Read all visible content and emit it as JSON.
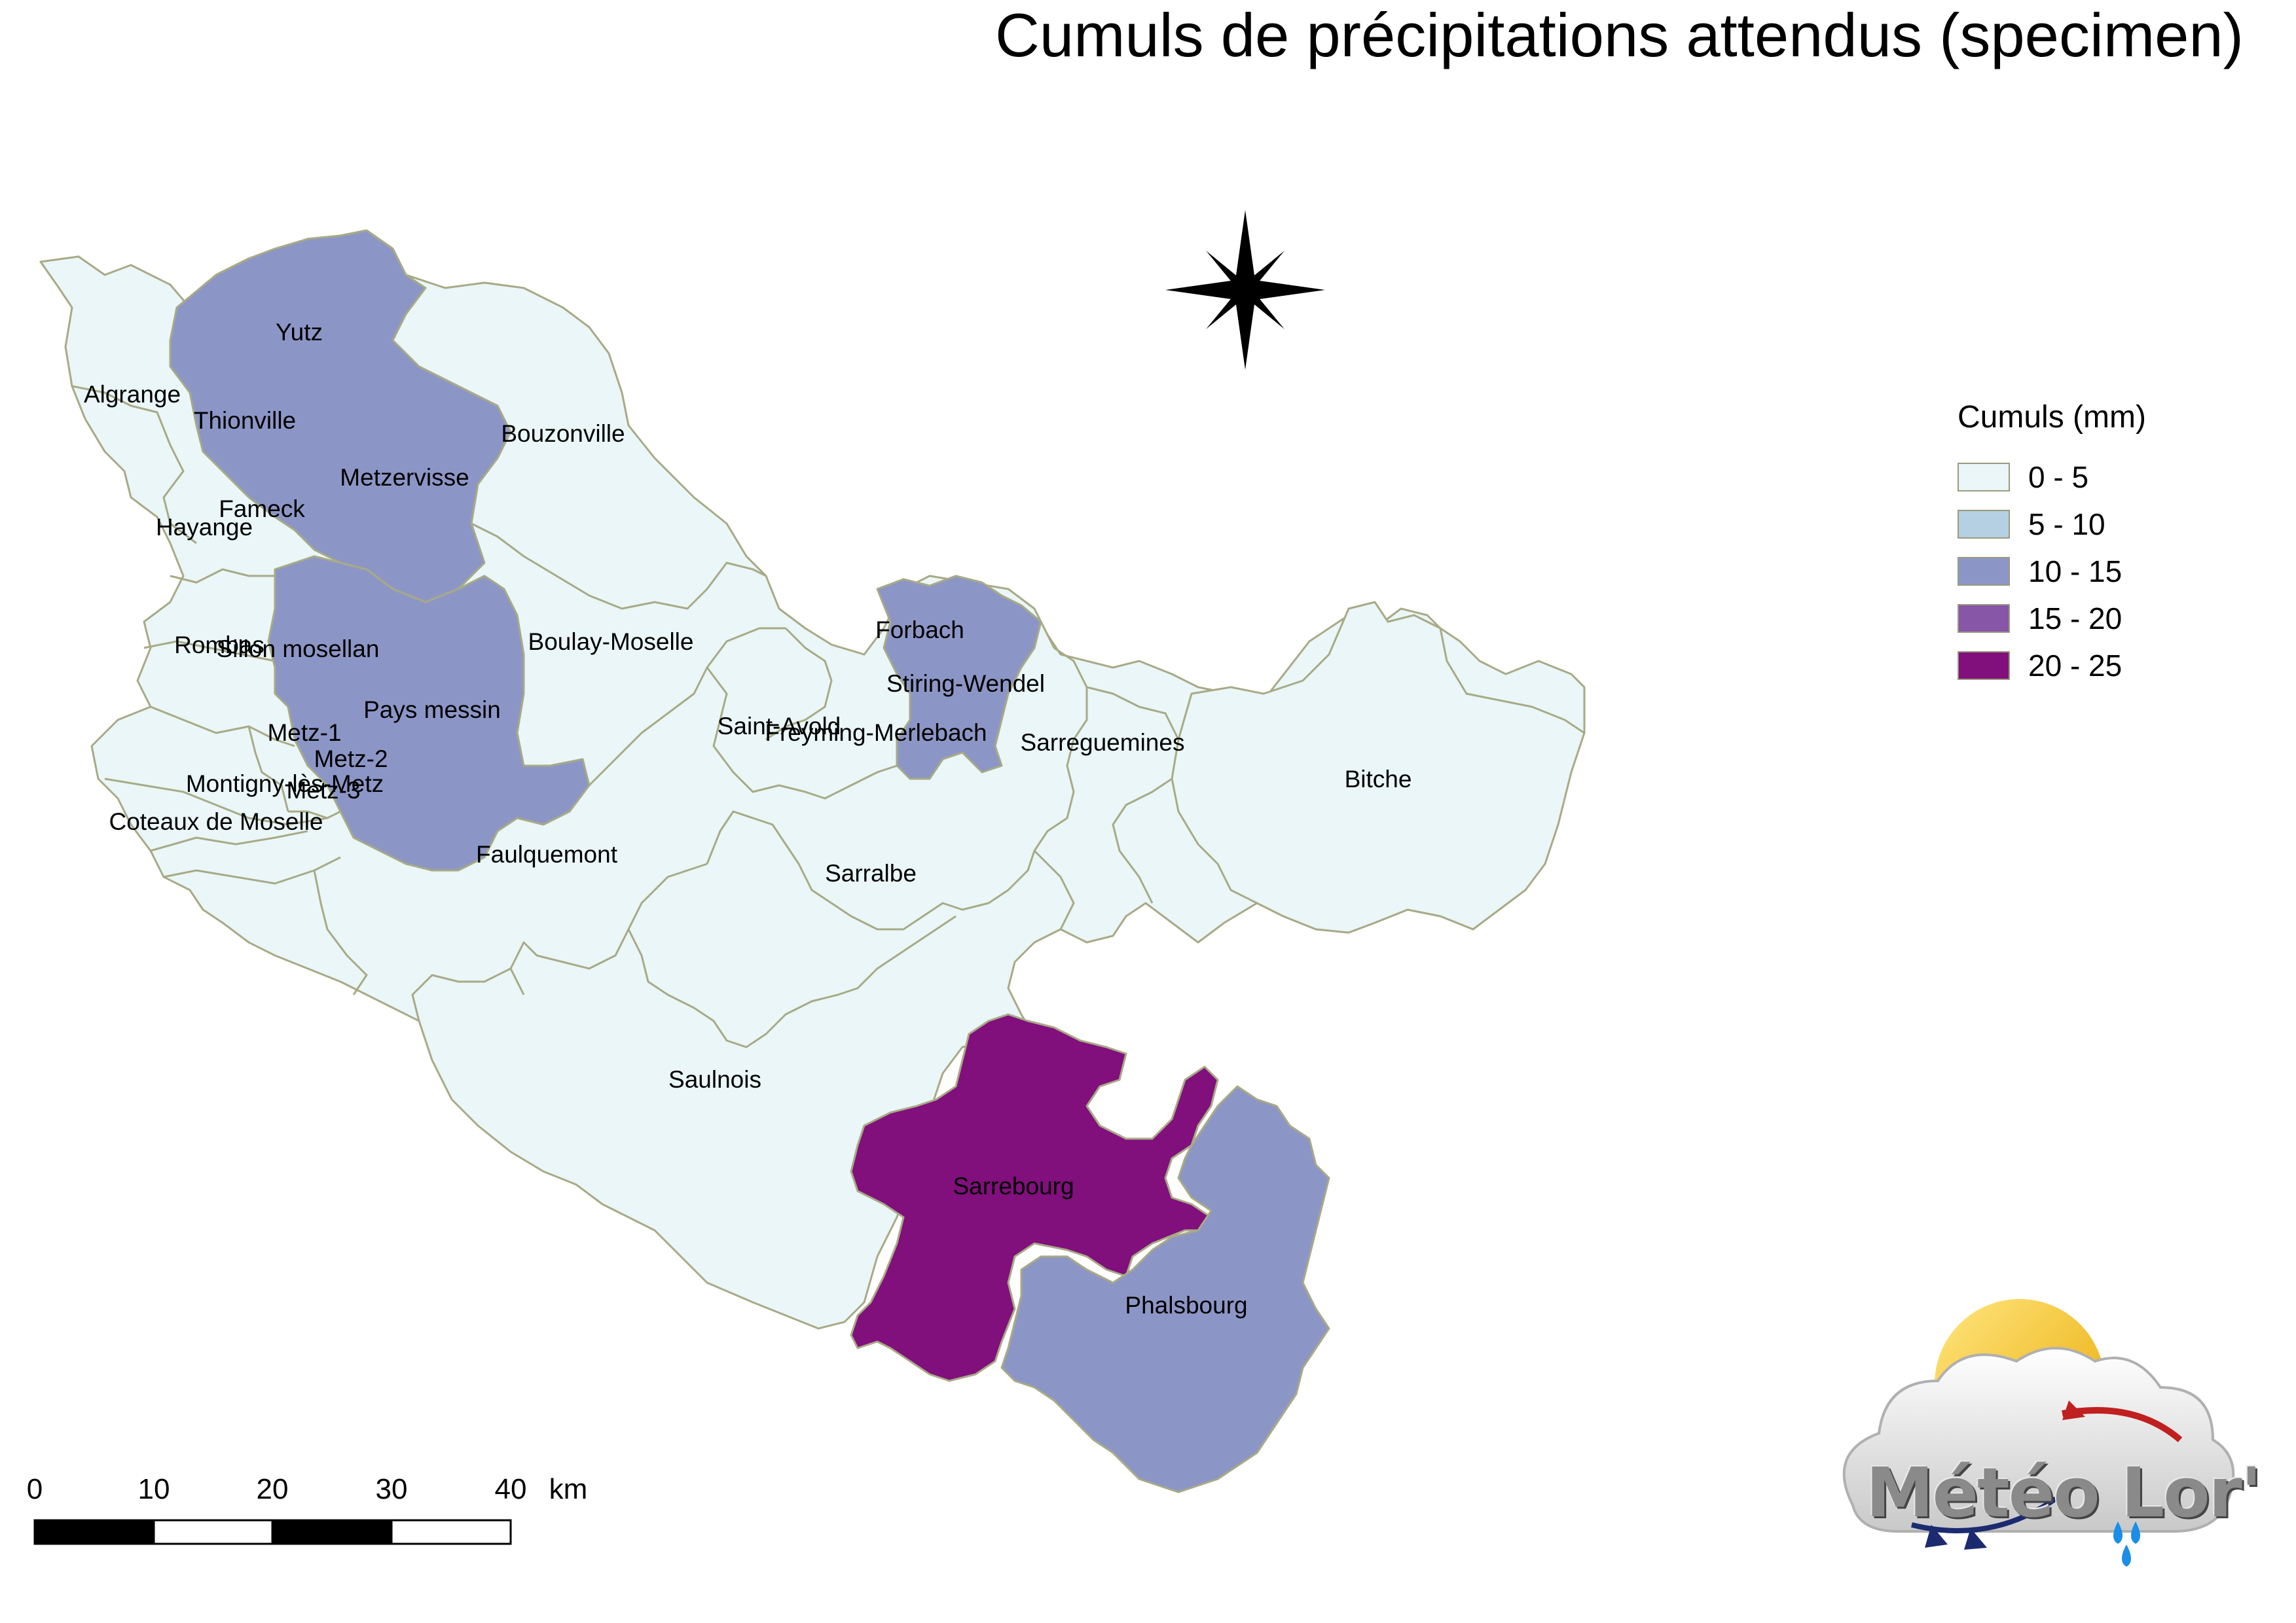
{
  "title": "Cumuls de précipitations attendus (specimen)",
  "legend": {
    "title": "Cumuls (mm)",
    "classes": [
      {
        "label": "0 - 5",
        "color": "#eaf6f7"
      },
      {
        "label": "5 - 10",
        "color": "#b6d0e3"
      },
      {
        "label": "10 - 15",
        "color": "#8c96c6"
      },
      {
        "label": "15 - 20",
        "color": "#8856a7"
      },
      {
        "label": "20 - 25",
        "color": "#810f7c"
      }
    ]
  },
  "regions": {
    "yutz": "Yutz",
    "algrange": "Algrange",
    "thionville": "Thionville",
    "bouzonville": "Bouzonville",
    "metzervisse": "Metzervisse",
    "fameck": "Fameck",
    "hayange": "Hayange",
    "boulay": "Boulay-Moselle",
    "forbach": "Forbach",
    "rombas": "Rombas",
    "sillon": "Sillon mosellan",
    "stiring": "Stiring-Wendel",
    "pays_messin": "Pays messin",
    "saint_avold": "Saint-Avold",
    "freyming": "Freyming-Merlebach",
    "sarreguemines": "Sarreguemines",
    "metz1": "Metz-1",
    "metz2": "Metz-2",
    "montigny": "Montigny-lès-Metz",
    "metz3": "Metz-3",
    "bitche": "Bitche",
    "coteaux": "Coteaux de Moselle",
    "faulquemont": "Faulquemont",
    "sarralbe": "Sarralbe",
    "saulnois": "Saulnois",
    "sarrebourg": "Sarrebourg",
    "phalsbourg": "Phalsbourg"
  },
  "scale_bar": {
    "ticks": [
      "0",
      "10",
      "20",
      "30",
      "40"
    ],
    "unit": "km"
  },
  "logo": {
    "text": "Météo Lor'",
    "icon": "sun-cloud-rain-icon"
  },
  "north_arrow": "compass-star-icon"
}
